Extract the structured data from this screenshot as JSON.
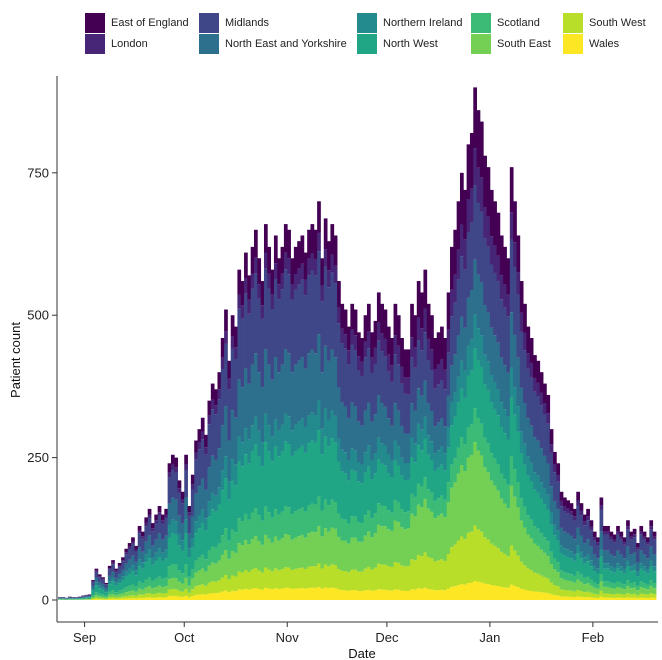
{
  "chart_data": {
    "type": "bar",
    "stacked": true,
    "title": "",
    "xlabel": "Date",
    "ylabel": "Patient count",
    "ylim": [
      0,
      920
    ],
    "yticks": [
      0,
      250,
      500,
      750
    ],
    "xticks": [
      "Sep",
      "Oct",
      "Nov",
      "Dec",
      "Jan",
      "Feb"
    ],
    "x_range": [
      "2020-08-24",
      "2021-02-19"
    ],
    "grid": false,
    "legend_position": "top",
    "series": [
      {
        "name": "Wales",
        "color": "#fde725"
      },
      {
        "name": "South West",
        "color": "#b8de29"
      },
      {
        "name": "South East",
        "color": "#74d055"
      },
      {
        "name": "Scotland",
        "color": "#3bbb75"
      },
      {
        "name": "North West",
        "color": "#21a685"
      },
      {
        "name": "Northern Ireland",
        "color": "#238a8d"
      },
      {
        "name": "North East and Yorkshire",
        "color": "#2d708e"
      },
      {
        "name": "Midlands",
        "color": "#3f4788"
      },
      {
        "name": "London",
        "color": "#482677"
      },
      {
        "name": "East of England",
        "color": "#440154"
      }
    ],
    "daily_totals_by_week": [
      {
        "week_start": "2020-08-24",
        "values": [
          5,
          5,
          4,
          6,
          5,
          5,
          6
        ]
      },
      {
        "week_start": "2020-08-31",
        "values": [
          8,
          9,
          10,
          35,
          55,
          45,
          40
        ]
      },
      {
        "week_start": "2020-09-07",
        "values": [
          30,
          60,
          70,
          55,
          65,
          75,
          90
        ]
      },
      {
        "week_start": "2020-09-14",
        "values": [
          100,
          110,
          95,
          130,
          120,
          145,
          160
        ]
      },
      {
        "week_start": "2020-09-21",
        "values": [
          135,
          150,
          165,
          150,
          160,
          240,
          255
        ]
      },
      {
        "week_start": "2020-09-28",
        "values": [
          250,
          210,
          190,
          255,
          165,
          220,
          280
        ]
      },
      {
        "week_start": "2020-10-05",
        "values": [
          300,
          320,
          290,
          350,
          380,
          370,
          400
        ]
      },
      {
        "week_start": "2020-10-12",
        "values": [
          460,
          510,
          420,
          500,
          480,
          580,
          560
        ]
      },
      {
        "week_start": "2020-10-19",
        "values": [
          610,
          570,
          620,
          650,
          600,
          560,
          660
        ]
      },
      {
        "week_start": "2020-10-26",
        "values": [
          620,
          580,
          640,
          600,
          620,
          660,
          650
        ]
      },
      {
        "week_start": "2020-11-02",
        "values": [
          600,
          620,
          630,
          640,
          610,
          650,
          660
        ]
      },
      {
        "week_start": "2020-11-09",
        "values": [
          650,
          700,
          600,
          670,
          630,
          660,
          640
        ]
      },
      {
        "week_start": "2020-11-16",
        "values": [
          560,
          520,
          510,
          480,
          520,
          510,
          470
        ]
      },
      {
        "week_start": "2020-11-23",
        "values": [
          460,
          500,
          520,
          470,
          490,
          540,
          520
        ]
      },
      {
        "week_start": "2020-11-30",
        "values": [
          510,
          480,
          460,
          520,
          500,
          460,
          440
        ]
      },
      {
        "week_start": "2020-12-07",
        "values": [
          440,
          520,
          500,
          560,
          540,
          580,
          520
        ]
      },
      {
        "week_start": "2020-12-14",
        "values": [
          500,
          460,
          470,
          480,
          460,
          540,
          620
        ]
      },
      {
        "week_start": "2020-12-21",
        "values": [
          650,
          700,
          750,
          720,
          800,
          820,
          900
        ]
      },
      {
        "week_start": "2020-12-28",
        "values": [
          860,
          840,
          780,
          760,
          720,
          700,
          680
        ]
      },
      {
        "week_start": "2021-01-04",
        "values": [
          640,
          620,
          600,
          760,
          700,
          640,
          560
        ]
      },
      {
        "week_start": "2021-01-11",
        "values": [
          520,
          480,
          460,
          430,
          420,
          400,
          380
        ]
      },
      {
        "week_start": "2021-01-18",
        "values": [
          360,
          300,
          260,
          240,
          190,
          180,
          175
        ]
      },
      {
        "week_start": "2021-01-25",
        "values": [
          170,
          160,
          190,
          170,
          150,
          160,
          140
        ]
      },
      {
        "week_start": "2021-02-01",
        "values": [
          120,
          110,
          180,
          130,
          130,
          120,
          115
        ]
      },
      {
        "week_start": "2021-02-08",
        "values": [
          130,
          120,
          110,
          140,
          120,
          125,
          100
        ]
      },
      {
        "week_start": "2021-02-15",
        "values": [
          130,
          120,
          110,
          140,
          120
        ]
      }
    ]
  }
}
